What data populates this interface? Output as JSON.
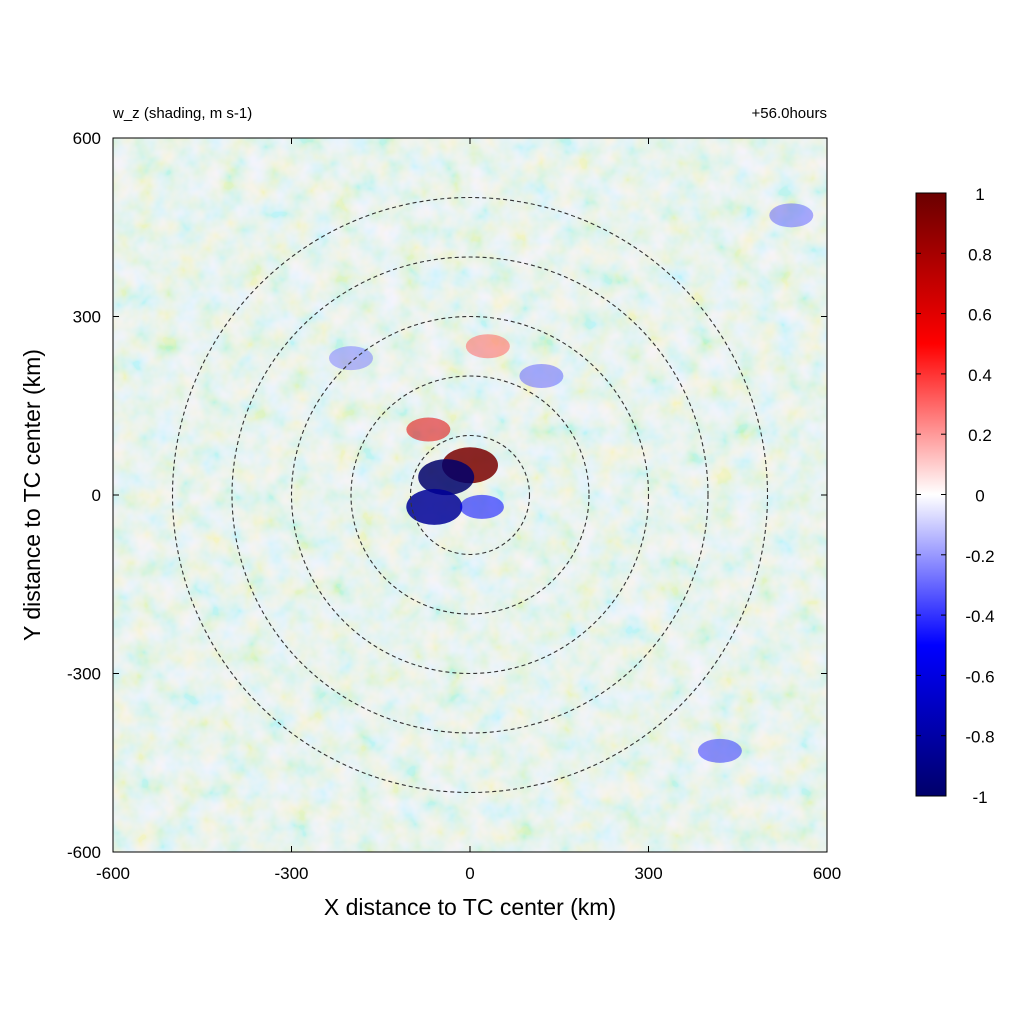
{
  "chart_data": {
    "type": "heatmap",
    "title_left": "w_z (shading, m s-1)",
    "title_right": "+56.0hours",
    "xlabel": "X distance to TC center (km)",
    "ylabel": "Y distance to TC center (km)",
    "xlim": [
      -600,
      600
    ],
    "ylim": [
      -600,
      600
    ],
    "x_ticks": [
      -600,
      -300,
      0,
      300,
      600
    ],
    "y_ticks": [
      -600,
      -300,
      0,
      300,
      600
    ],
    "x_tick_labels": [
      "-600",
      "-300",
      "0",
      "300",
      "600"
    ],
    "y_tick_labels": [
      "-600",
      "-300",
      "0",
      "300",
      "600"
    ],
    "colorbar": {
      "range": [
        -1,
        1
      ],
      "colors": [
        "#00006a",
        "#0000ff",
        "#ffffff",
        "#ff0000",
        "#6a0000"
      ],
      "ticks": [
        1,
        0.8,
        0.6,
        0.4,
        0.2,
        0,
        -0.2,
        -0.4,
        -0.6,
        -0.8,
        -1
      ],
      "tick_labels": [
        "1",
        "0.8",
        "0.6",
        "0.4",
        "0.2",
        "0",
        "-0.2",
        "-0.4",
        "-0.6",
        "-0.8",
        "-1"
      ]
    },
    "range_rings_km": [
      100,
      200,
      300,
      400,
      500
    ],
    "ring_style": "dashed",
    "field_features": [
      {
        "x": 0,
        "y": 50,
        "value": 0.95
      },
      {
        "x": -40,
        "y": 30,
        "value": -1.0
      },
      {
        "x": -60,
        "y": -20,
        "value": -0.85
      },
      {
        "x": 20,
        "y": -20,
        "value": -0.5
      },
      {
        "x": -70,
        "y": 110,
        "value": 0.6
      },
      {
        "x": 30,
        "y": 250,
        "value": 0.3
      },
      {
        "x": 120,
        "y": 200,
        "value": -0.3
      },
      {
        "x": -200,
        "y": 230,
        "value": -0.25
      },
      {
        "x": 420,
        "y": -430,
        "value": -0.4
      },
      {
        "x": 540,
        "y": 470,
        "value": -0.3
      }
    ]
  }
}
